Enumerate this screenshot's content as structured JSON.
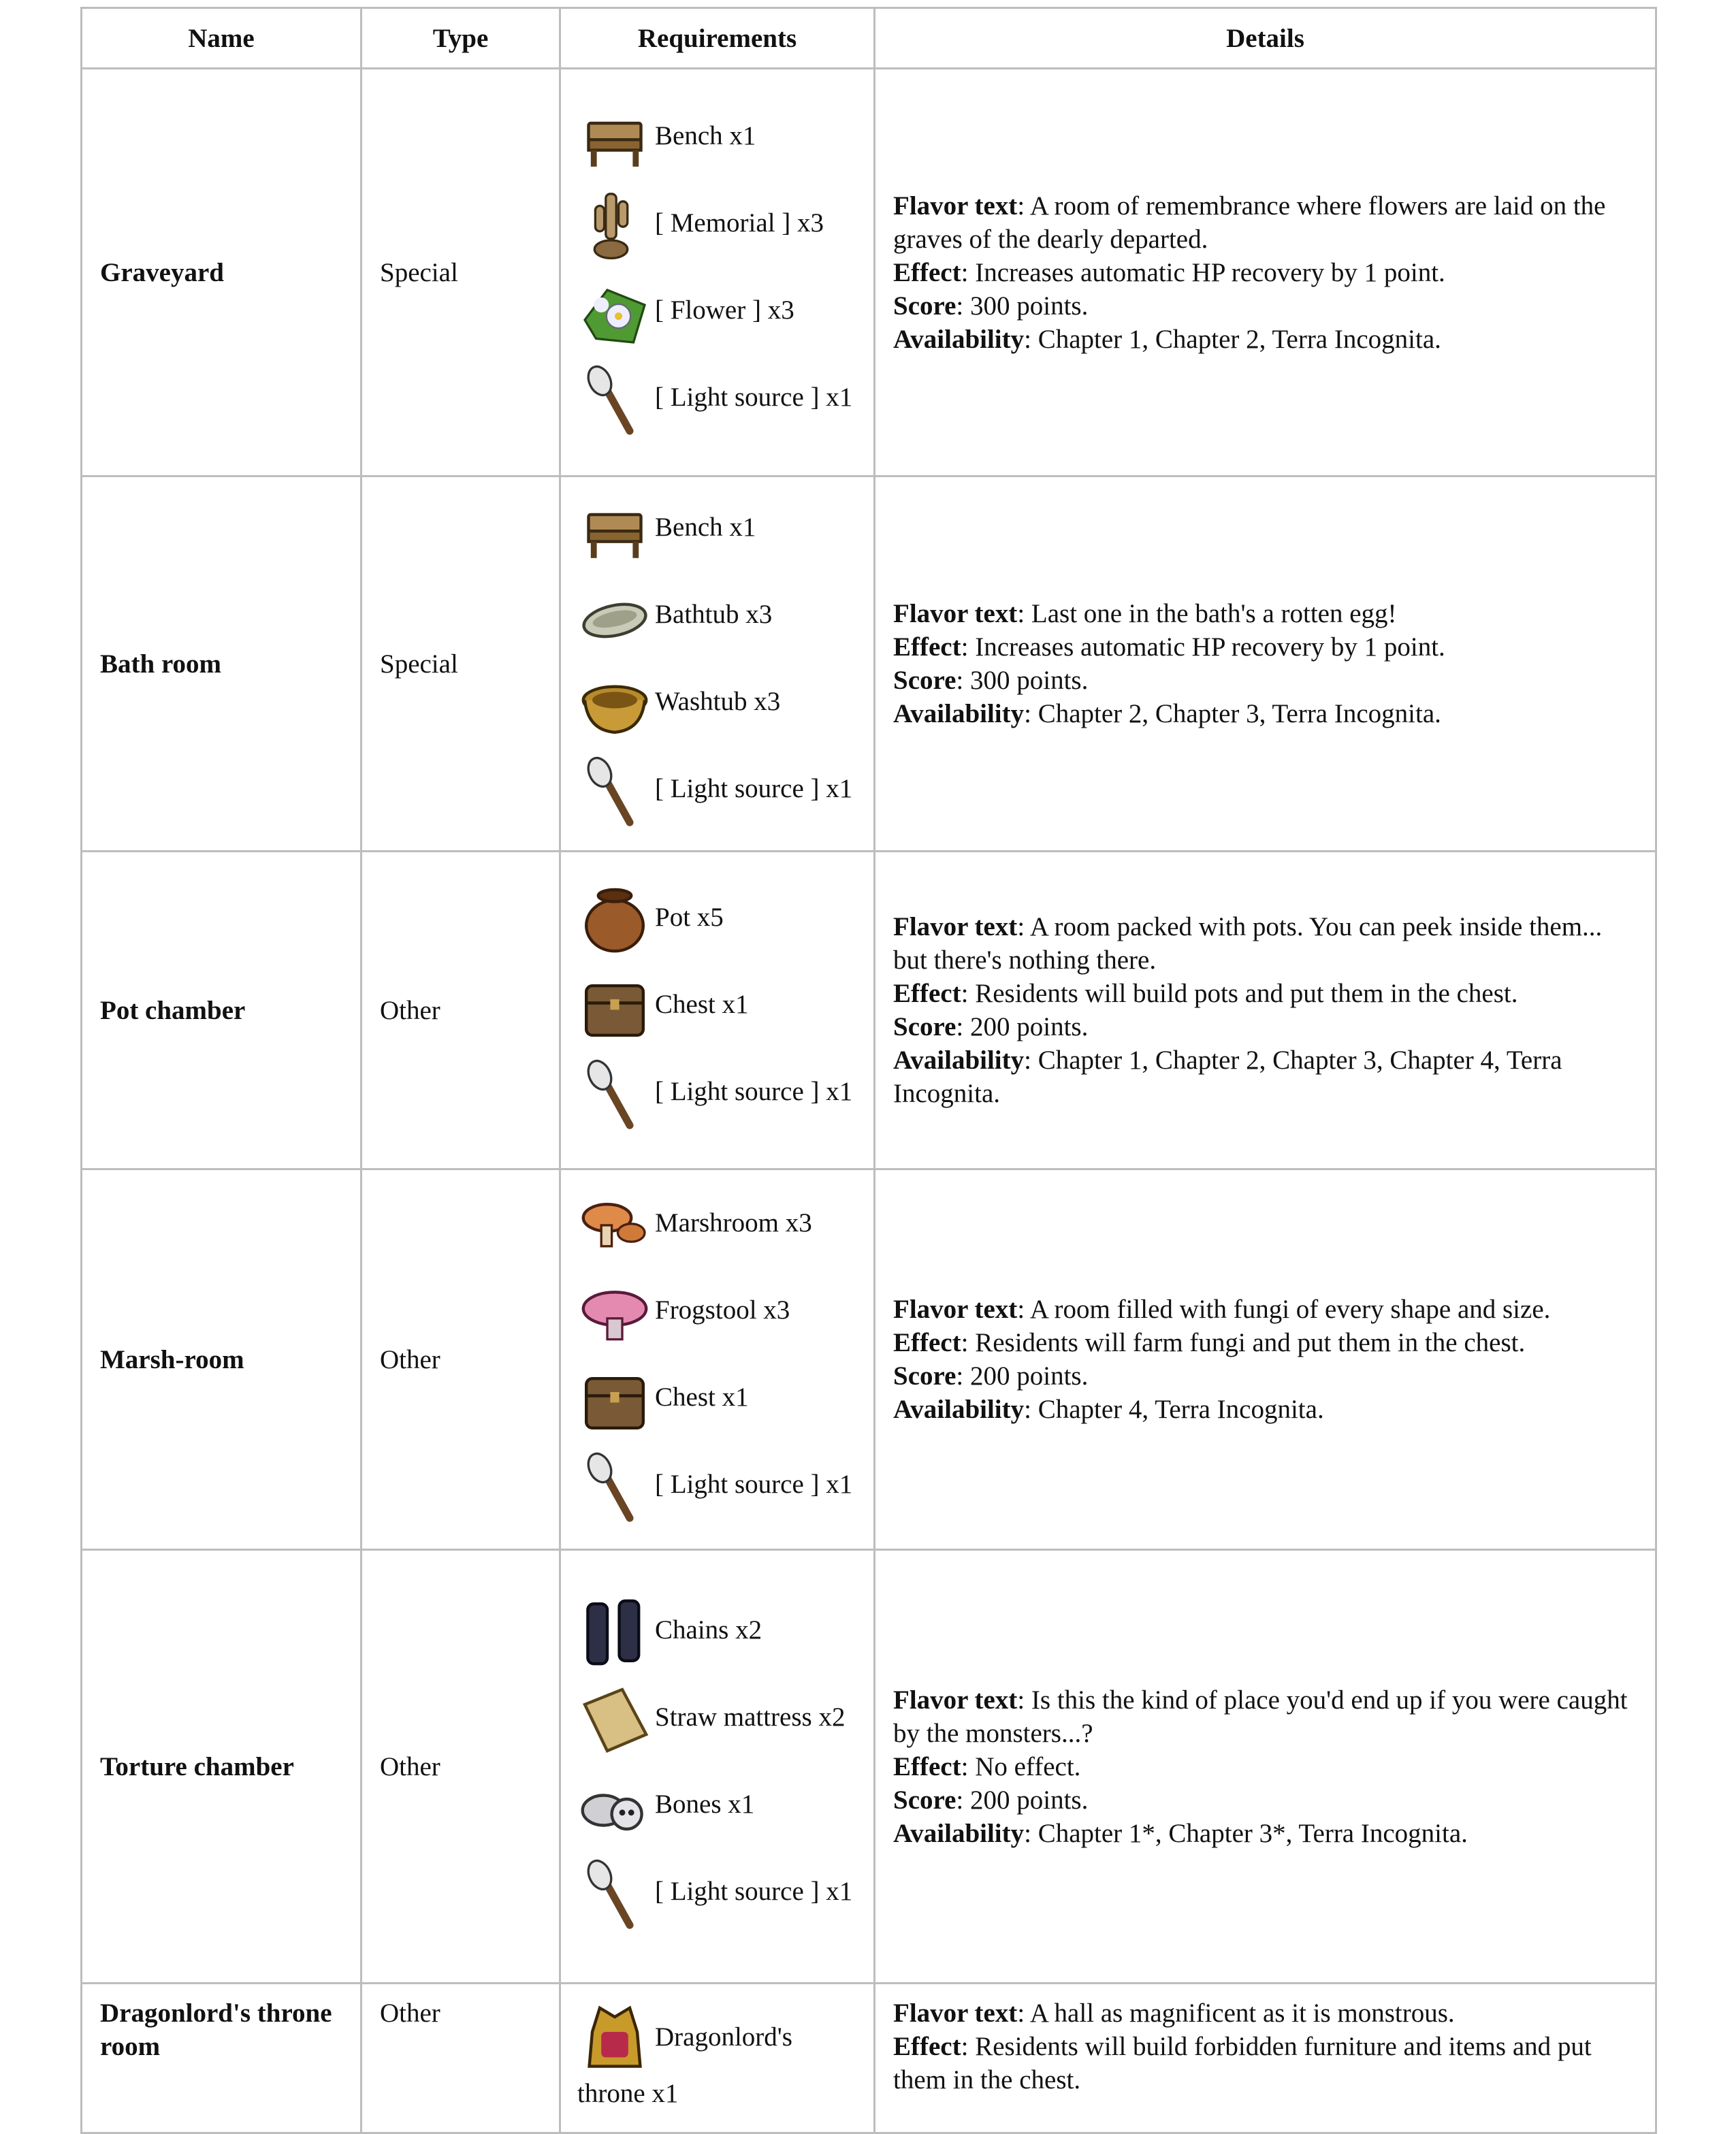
{
  "headers": [
    "Name",
    "Type",
    "Requirements",
    "Details"
  ],
  "rows": [
    {
      "name": "Graveyard",
      "type": "Special",
      "requirements": [
        {
          "icon": "bench-icon",
          "text": "Bench x1"
        },
        {
          "icon": "memorial-icon",
          "text": "[ Memorial ] x3"
        },
        {
          "icon": "flower-icon",
          "text": "[ Flower ] x3"
        },
        {
          "icon": "torch-icon",
          "text": "[ Light source ] x1"
        }
      ],
      "details": [
        {
          "label": "Flavor text",
          "text": "A room of remembrance where flowers are laid on the graves of the dearly departed."
        },
        {
          "label": "Effect",
          "text": "Increases automatic HP recovery by 1 point."
        },
        {
          "label": "Score",
          "text": "300 points."
        },
        {
          "label": "Availability",
          "text": "Chapter 1, Chapter 2, Terra Incognita."
        }
      ]
    },
    {
      "name": "Bath room",
      "type": "Special",
      "requirements": [
        {
          "icon": "bench-icon",
          "text": "Bench x1"
        },
        {
          "icon": "bathtub-icon",
          "text": "Bathtub x3"
        },
        {
          "icon": "washtub-icon",
          "text": "Washtub x3"
        },
        {
          "icon": "torch-icon",
          "text": "[ Light source ] x1"
        }
      ],
      "details": [
        {
          "label": "Flavor text",
          "text": "Last one in the bath's a rotten egg!"
        },
        {
          "label": "Effect",
          "text": "Increases automatic HP recovery by 1 point."
        },
        {
          "label": "Score",
          "text": "300 points."
        },
        {
          "label": "Availability",
          "text": "Chapter 2, Chapter 3, Terra Incognita."
        }
      ]
    },
    {
      "name": "Pot chamber",
      "type": "Other",
      "requirements": [
        {
          "icon": "pot-icon",
          "text": "Pot x5"
        },
        {
          "icon": "chest-icon",
          "text": "Chest x1"
        },
        {
          "icon": "torch-icon",
          "text": "[ Light source ] x1"
        }
      ],
      "details": [
        {
          "label": "Flavor text",
          "text": "A room packed with pots. You can peek inside them... but there's nothing there."
        },
        {
          "label": "Effect",
          "text": "Residents will build pots and put them in the chest."
        },
        {
          "label": "Score",
          "text": "200 points."
        },
        {
          "label": "Availability",
          "text": "Chapter 1, Chapter 2, Chapter 3, Chapter 4, Terra Incognita."
        }
      ]
    },
    {
      "name": "Marsh-room",
      "type": "Other",
      "requirements": [
        {
          "icon": "marshroom-icon",
          "text": "Marshroom x3"
        },
        {
          "icon": "frogstool-icon",
          "text": "Frogstool x3"
        },
        {
          "icon": "chest-icon",
          "text": "Chest x1"
        },
        {
          "icon": "torch-icon",
          "text": "[ Light source ] x1"
        }
      ],
      "details": [
        {
          "label": "Flavor text",
          "text": "A room filled with fungi of every shape and size."
        },
        {
          "label": "Effect",
          "text": "Residents will farm fungi and put them in the chest."
        },
        {
          "label": "Score",
          "text": "200 points."
        },
        {
          "label": "Availability",
          "text": "Chapter 4, Terra Incognita."
        }
      ]
    },
    {
      "name": "Torture chamber",
      "type": "Other",
      "requirements": [
        {
          "icon": "chains-icon",
          "text": "Chains x2"
        },
        {
          "icon": "straw-mattress-icon",
          "text": "Straw mattress x2"
        },
        {
          "icon": "bones-icon",
          "text": "Bones x1"
        },
        {
          "icon": "torch-icon",
          "text": "[ Light source ] x1"
        }
      ],
      "details": [
        {
          "label": "Flavor text",
          "text": "Is this the kind of place you'd end up if you were caught by the monsters...?"
        },
        {
          "label": "Effect",
          "text": "No effect."
        },
        {
          "label": "Score",
          "text": "200 points."
        },
        {
          "label": "Availability",
          "text": "Chapter 1*, Chapter 3*, Terra Incognita."
        }
      ]
    },
    {
      "name": "Dragonlord's throne room",
      "type": "Other",
      "requirements": [
        {
          "icon": "throne-icon",
          "text": "Dragonlord's throne x1"
        }
      ],
      "details": [
        {
          "label": "Flavor text",
          "text": "A hall as magnificent as it is monstrous."
        },
        {
          "label": "Effect",
          "text": "Residents will build forbidden furniture and items and put them in the chest."
        }
      ]
    }
  ]
}
